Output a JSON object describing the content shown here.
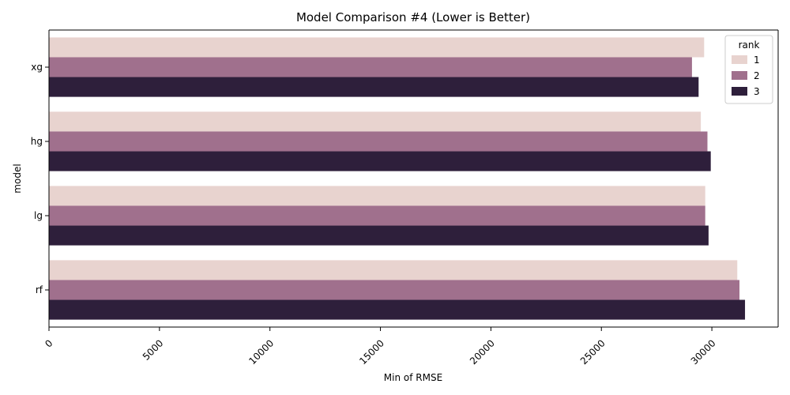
{
  "chart_data": {
    "type": "bar",
    "orientation": "horizontal",
    "title": "Model Comparison #4 (Lower is Better)",
    "xlabel": "Min of RMSE",
    "ylabel": "model",
    "categories": [
      "xg",
      "hg",
      "lg",
      "rf"
    ],
    "xlim": [
      0,
      33000
    ],
    "xticks": [
      0,
      5000,
      10000,
      15000,
      20000,
      25000,
      30000
    ],
    "grid": false,
    "legend": {
      "title": "rank",
      "placement": "top-right"
    },
    "series": [
      {
        "name": "1",
        "color": "#e8d3cf",
        "values": [
          29650,
          29500,
          29700,
          31150
        ]
      },
      {
        "name": "2",
        "color": "#a0708d",
        "values": [
          29100,
          29800,
          29700,
          31250
        ]
      },
      {
        "name": "3",
        "color": "#2e1f3b",
        "values": [
          29400,
          29950,
          29850,
          31500
        ]
      }
    ]
  }
}
